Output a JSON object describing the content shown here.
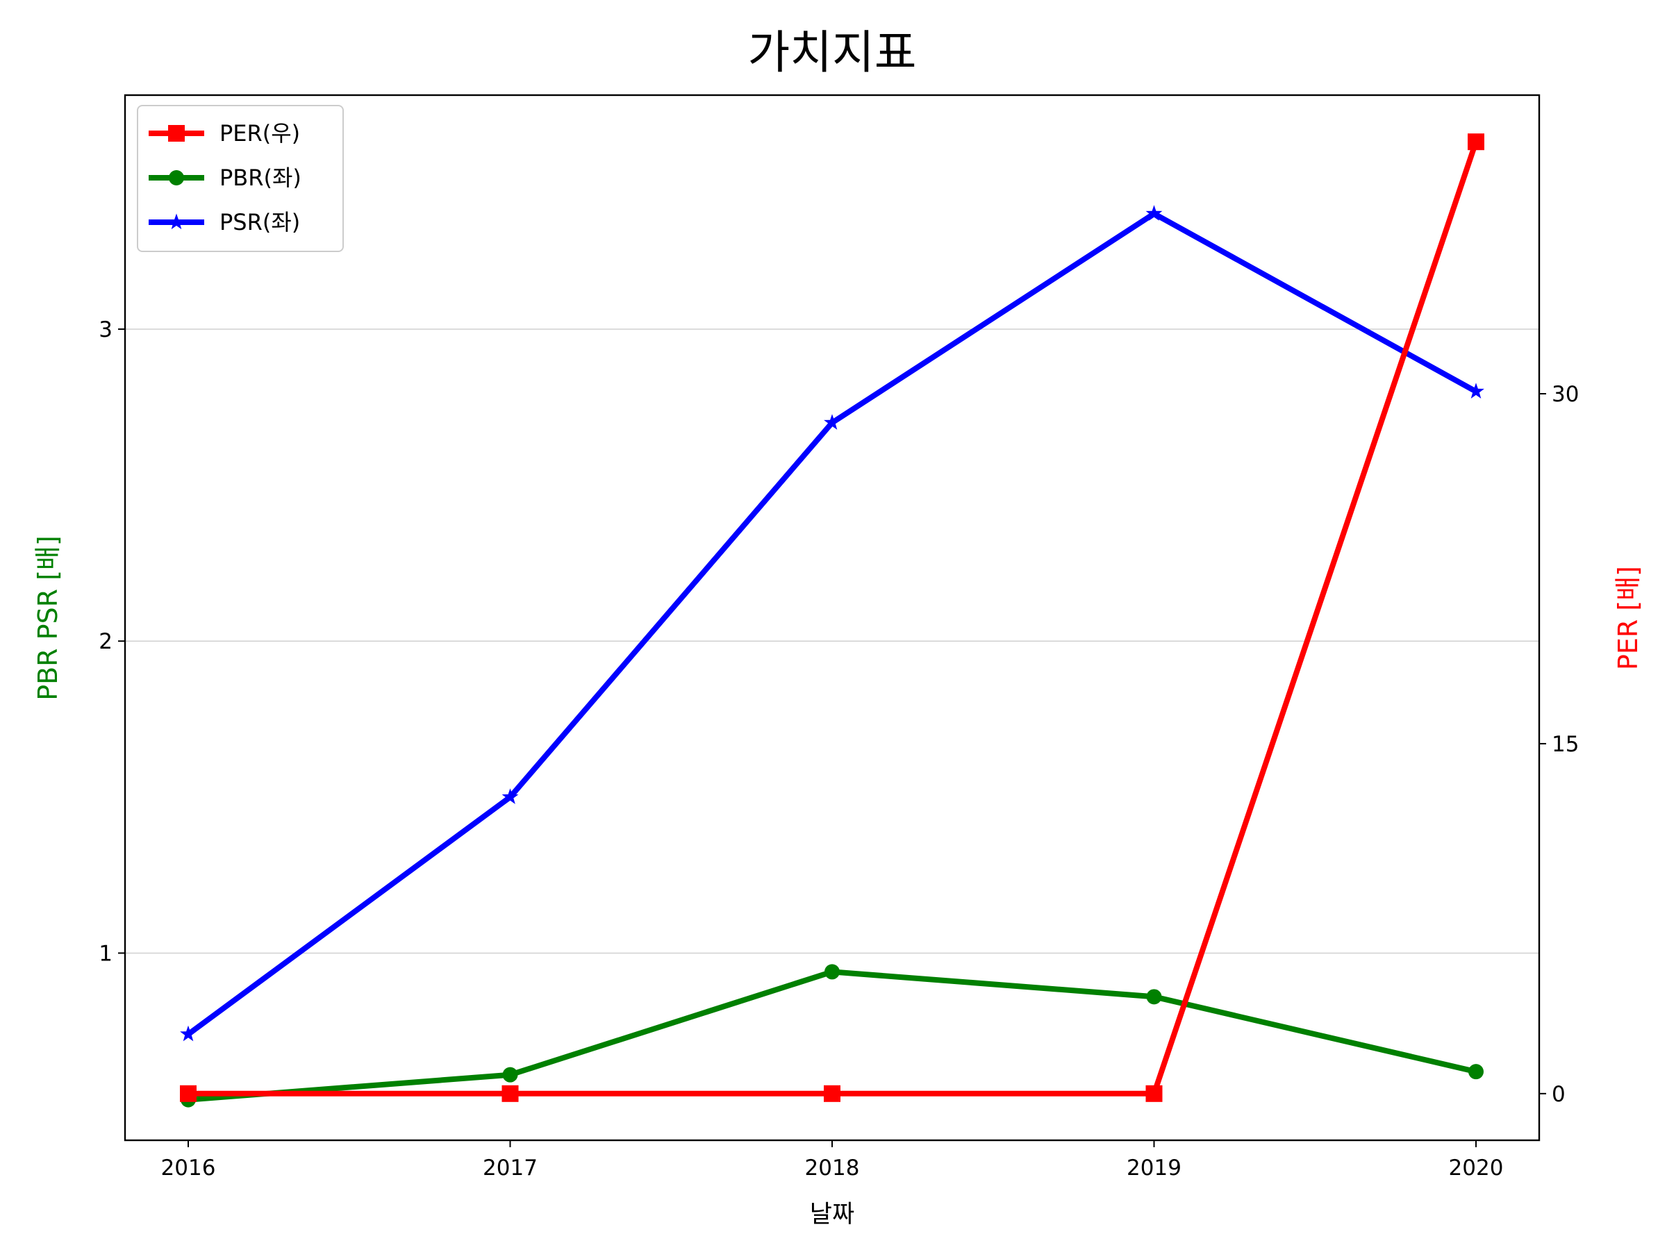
{
  "chart_data": {
    "type": "line",
    "title": "가치지표",
    "xlabel": "날짜",
    "ylabel_left": "PBR PSR [배]",
    "ylabel_right": "PER [배]",
    "categories": [
      "2016",
      "2017",
      "2018",
      "2019",
      "2020"
    ],
    "ylim_left": [
      0.4,
      3.75
    ],
    "yticks_left": [
      1,
      2,
      3
    ],
    "ylim_right": [
      -2.0,
      42.8
    ],
    "yticks_right": [
      0,
      15,
      30
    ],
    "grid": "horizontal (left axis)",
    "legend_position": "upper-left",
    "series": [
      {
        "name": "PER(우)",
        "axis": "right",
        "color": "#ff0000",
        "marker": "square",
        "values": [
          0,
          0,
          0,
          0,
          40.8
        ]
      },
      {
        "name": "PBR(좌)",
        "axis": "left",
        "color": "#008000",
        "marker": "circle",
        "values": [
          0.53,
          0.61,
          0.94,
          0.86,
          0.62
        ]
      },
      {
        "name": "PSR(좌)",
        "axis": "left",
        "color": "#0000ff",
        "marker": "star",
        "values": [
          0.74,
          1.5,
          2.7,
          3.37,
          2.8
        ]
      }
    ]
  }
}
